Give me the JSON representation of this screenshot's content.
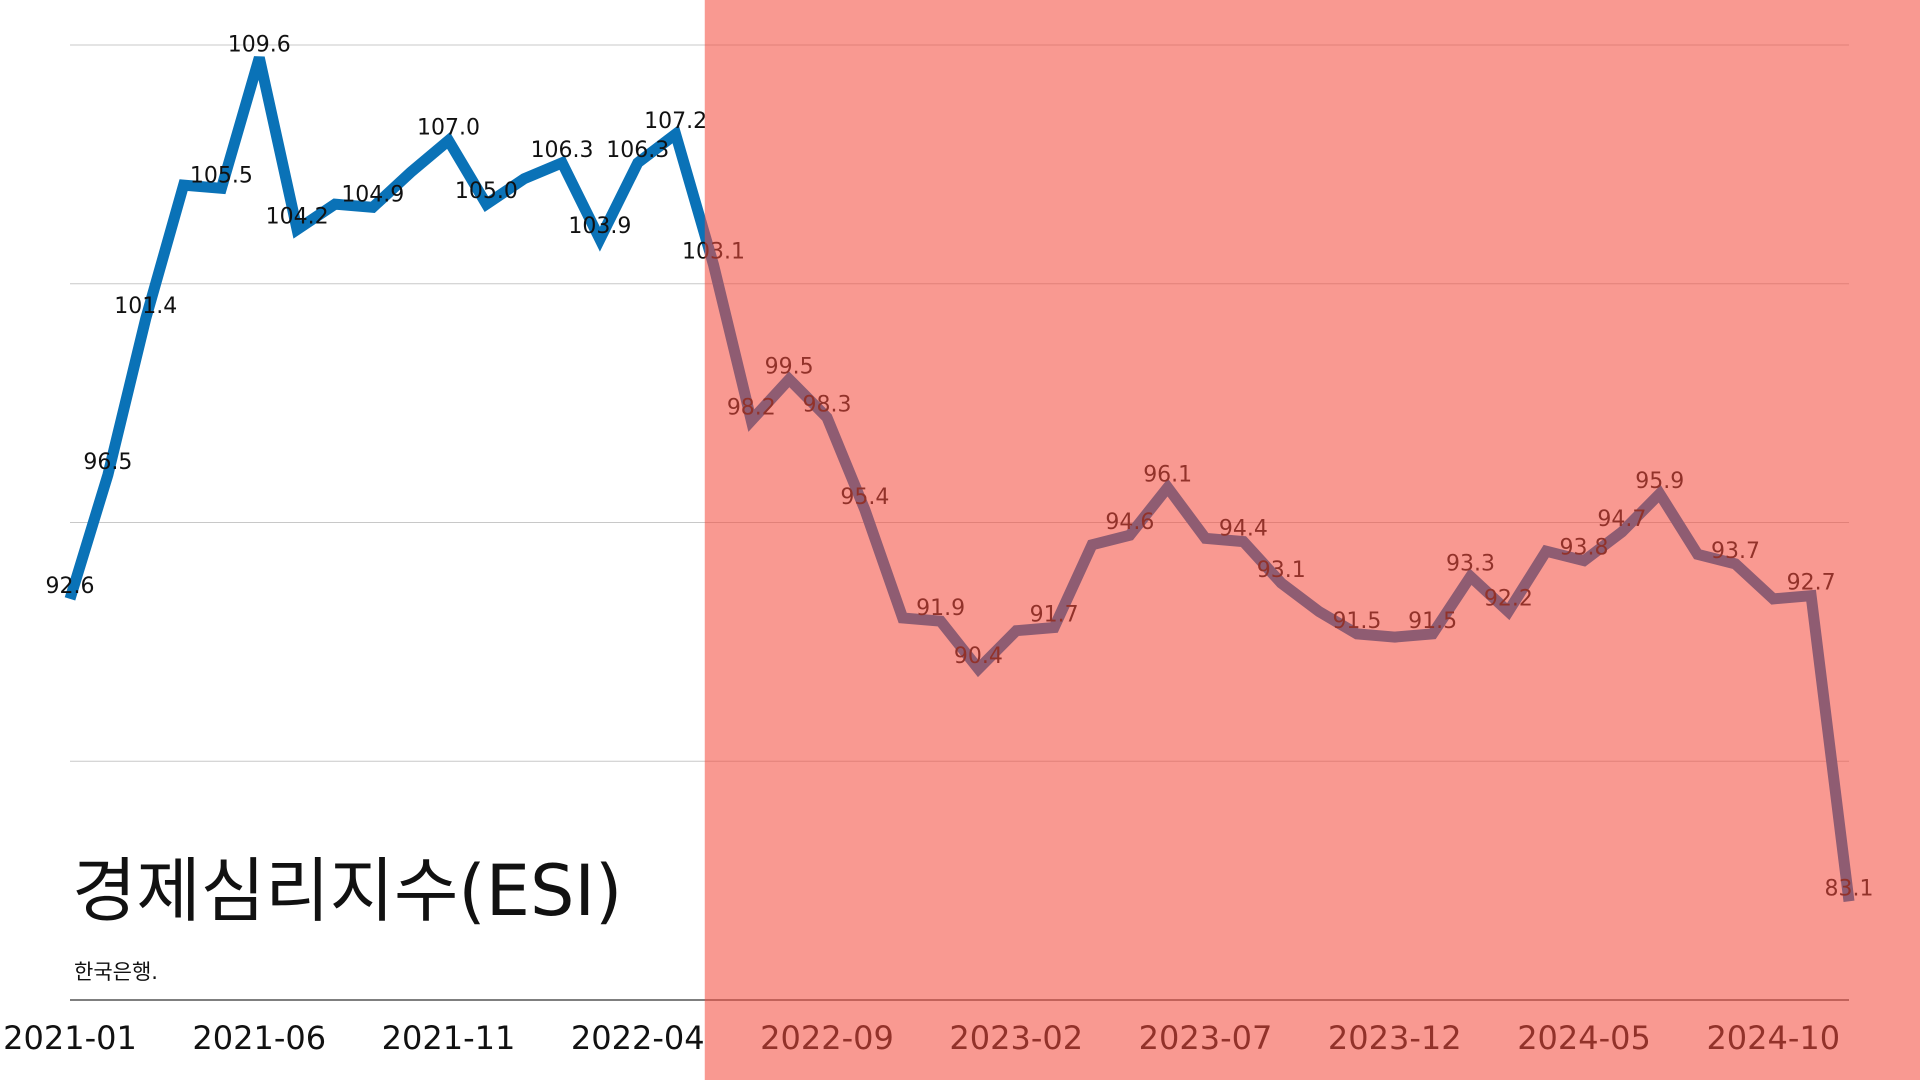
{
  "chart_data": {
    "type": "line",
    "title": "경제심리지수(ESI)",
    "source": "한국은행.",
    "categories": [
      "2021-01",
      null,
      null,
      null,
      null,
      "2021-06",
      null,
      null,
      null,
      null,
      "2021-11",
      null,
      null,
      null,
      null,
      "2022-04",
      null,
      null,
      null,
      null,
      "2022-09",
      null,
      null,
      null,
      null,
      "2023-02",
      null,
      null,
      null,
      null,
      "2023-07",
      null,
      null,
      null,
      null,
      "2023-12",
      null,
      null,
      null,
      null,
      "2024-05",
      null,
      null,
      null,
      null,
      "2024-10",
      null,
      null
    ],
    "series": [
      {
        "name": "ESI",
        "color": "#0a72b7",
        "values": [
          92.6,
          96.5,
          101.4,
          105.6,
          105.5,
          109.6,
          104.2,
          105.0,
          104.9,
          106.0,
          107.0,
          105.0,
          105.8,
          106.3,
          103.9,
          106.3,
          107.2,
          103.1,
          98.2,
          99.5,
          98.3,
          95.4,
          92.0,
          91.9,
          90.4,
          91.6,
          91.7,
          94.3,
          94.6,
          96.1,
          94.5,
          94.4,
          93.1,
          92.2,
          91.5,
          91.4,
          91.5,
          93.3,
          92.2,
          94.1,
          93.8,
          94.7,
          95.9,
          94.0,
          93.7,
          92.6,
          92.7,
          83.1
        ],
        "value_labels": [
          "92.6",
          "96.5",
          "101.4",
          null,
          "105.5",
          "109.6",
          "104.2",
          null,
          "104.9",
          null,
          "107.0",
          "105.0",
          null,
          "106.3",
          "103.9",
          "106.3",
          "107.2",
          "103.1",
          "98.2",
          "99.5",
          "98.3",
          "95.4",
          null,
          "91.9",
          "90.4",
          null,
          "91.7",
          null,
          "94.6",
          "96.1",
          null,
          "94.4",
          "93.1",
          null,
          "91.5",
          null,
          "91.5",
          "93.3",
          "92.2",
          null,
          "93.8",
          "94.7",
          "95.9",
          null,
          "93.7",
          null,
          "92.7",
          "83.1"
        ]
      }
    ],
    "ylim": [
      80,
      110
    ],
    "yticks": [
      80,
      87.5,
      95,
      102.5,
      110
    ],
    "grid": true,
    "highlight_color": "rgba(244,75,61,0.57)"
  }
}
